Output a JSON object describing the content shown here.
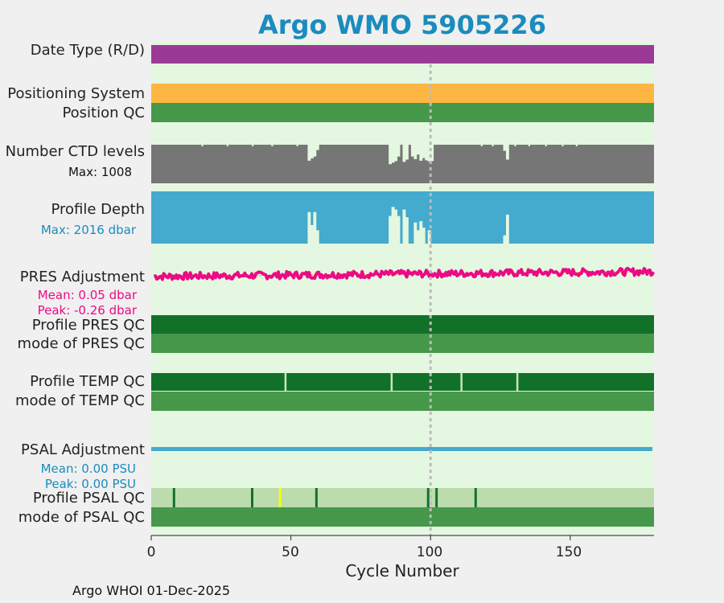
{
  "title": "Argo WMO 5905226",
  "footer": "Argo WHOI 01-Dec-2025",
  "colors": {
    "background": "#f0f0f0",
    "plot_bg": "#e4f7e0",
    "title": "#1a8cbd",
    "data_type": "#9a3a96",
    "positioning": "#fdb642",
    "qc_good": "#46984a",
    "qc_dark": "#127129",
    "ctd": "#767676",
    "profile_depth": "#44aace",
    "pres_adj": "#ec0a85",
    "psal_adj": "#44aace",
    "psal_qc_bg": "#bcdcae",
    "highlight": "#ffff00",
    "gap": "#c8e6b8"
  },
  "rows": {
    "data_type": "Date Type (R/D)",
    "positioning_system": "Positioning System",
    "position_qc": "Position QC",
    "ctd_levels": "Number CTD levels",
    "ctd_max": "Max: 1008",
    "profile_depth": "Profile Depth",
    "depth_max": "Max: 2016 dbar",
    "pres_adj": "PRES Adjustment",
    "pres_mean": "Mean: 0.05 dbar",
    "pres_peak": "Peak: -0.26 dbar",
    "profile_pres_qc": "Profile PRES QC",
    "mode_pres_qc": "mode of PRES QC",
    "profile_temp_qc": "Profile TEMP QC",
    "mode_temp_qc": "mode of TEMP QC",
    "psal_adj": "PSAL Adjustment",
    "psal_mean": "Mean: 0.00 PSU",
    "psal_peak": "Peak: 0.00 PSU",
    "profile_psal_qc": "Profile PSAL QC",
    "mode_psal_qc": "mode of PSAL QC"
  },
  "chart_data": {
    "type": "bar",
    "xlabel": "Cycle Number",
    "xlim": [
      0,
      180
    ],
    "xticks": [
      0,
      50,
      100,
      150
    ],
    "reference_cycle": 100,
    "ctd_levels_max": 1008,
    "profile_depth_max_dbar": 2016,
    "ctd_level_dips": [
      {
        "cycle": 57,
        "value": 590
      },
      {
        "cycle": 58,
        "value": 650
      },
      {
        "cycle": 59,
        "value": 700
      },
      {
        "cycle": 60,
        "value": 870
      },
      {
        "cycle": 86,
        "value": 500
      },
      {
        "cycle": 87,
        "value": 540
      },
      {
        "cycle": 88,
        "value": 580
      },
      {
        "cycle": 89,
        "value": 700
      },
      {
        "cycle": 91,
        "value": 560
      },
      {
        "cycle": 92,
        "value": 620
      },
      {
        "cycle": 94,
        "value": 700
      },
      {
        "cycle": 95,
        "value": 630
      },
      {
        "cycle": 96,
        "value": 750
      },
      {
        "cycle": 97,
        "value": 590
      },
      {
        "cycle": 98,
        "value": 660
      },
      {
        "cycle": 99,
        "value": 600
      },
      {
        "cycle": 100,
        "value": 570
      },
      {
        "cycle": 101,
        "value": 580
      },
      {
        "cycle": 127,
        "value": 850
      },
      {
        "cycle": 128,
        "value": 620
      }
    ],
    "profile_depth_dips": [
      {
        "cycle": 57,
        "value": 800
      },
      {
        "cycle": 58,
        "value": 1300
      },
      {
        "cycle": 59,
        "value": 800
      },
      {
        "cycle": 60,
        "value": 1500
      },
      {
        "cycle": 86,
        "value": 950
      },
      {
        "cycle": 87,
        "value": 600
      },
      {
        "cycle": 88,
        "value": 700
      },
      {
        "cycle": 89,
        "value": 950
      },
      {
        "cycle": 91,
        "value": 700
      },
      {
        "cycle": 92,
        "value": 1000
      },
      {
        "cycle": 95,
        "value": 1200
      },
      {
        "cycle": 96,
        "value": 1500
      },
      {
        "cycle": 97,
        "value": 1150
      },
      {
        "cycle": 98,
        "value": 1400
      },
      {
        "cycle": 100,
        "value": 1500
      },
      {
        "cycle": 127,
        "value": 1700
      },
      {
        "cycle": 128,
        "value": 900
      }
    ],
    "pres_adjustment": {
      "mean": 0.05,
      "peak": -0.26,
      "unit": "dbar",
      "trend_start": -0.02,
      "trend_end": 0.13
    },
    "psal_adjustment": {
      "mean": 0.0,
      "peak": 0.0,
      "unit": "PSU"
    },
    "temp_qc_flag_cycles": [
      48,
      86,
      111,
      131
    ],
    "psal_qc_flag_cycles": [
      8,
      36,
      59,
      99,
      102,
      116
    ],
    "psal_qc_highlight_cycles": [
      46
    ]
  }
}
